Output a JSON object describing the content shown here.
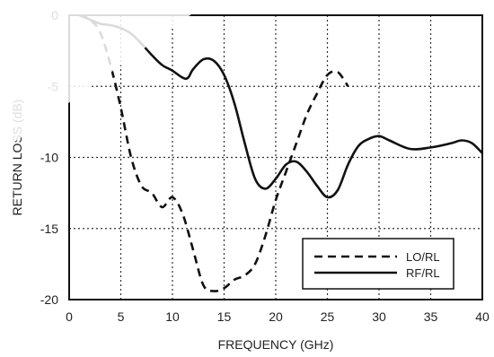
{
  "chart_data": {
    "type": "line",
    "title": "",
    "xlabel": "FREQUENCY (GHz)",
    "ylabel": "RETURN LOSS (dB)",
    "xlim": [
      0,
      40
    ],
    "ylim": [
      -20,
      0
    ],
    "xticks": [
      0,
      5,
      10,
      15,
      20,
      25,
      30,
      35,
      40
    ],
    "yticks": [
      0,
      -5,
      -10,
      -15,
      -20
    ],
    "grid": "dotted",
    "legend_position": "bottom-right",
    "series": [
      {
        "name": "LO/RL",
        "style": "dashed",
        "color": "#111111",
        "points": [
          [
            1,
            0
          ],
          [
            2,
            -0.3
          ],
          [
            3,
            -1.2
          ],
          [
            4,
            -3.5
          ],
          [
            5,
            -6.5
          ],
          [
            6,
            -10
          ],
          [
            7,
            -12
          ],
          [
            8,
            -12.5
          ],
          [
            9,
            -13.5
          ],
          [
            10,
            -12.8
          ],
          [
            11,
            -14
          ],
          [
            12,
            -16.5
          ],
          [
            13,
            -19
          ],
          [
            14,
            -19.4
          ],
          [
            15,
            -19.2
          ],
          [
            16,
            -18.6
          ],
          [
            17,
            -18.3
          ],
          [
            18,
            -17.5
          ],
          [
            19,
            -15.5
          ],
          [
            20,
            -13
          ],
          [
            21,
            -11
          ],
          [
            22,
            -9
          ],
          [
            23,
            -7
          ],
          [
            24,
            -5.5
          ],
          [
            25,
            -4.2
          ],
          [
            26,
            -4
          ],
          [
            27,
            -5
          ]
        ]
      },
      {
        "name": "RF/RL",
        "style": "solid",
        "color": "#111111",
        "points": [
          [
            1,
            0
          ],
          [
            2,
            -0.3
          ],
          [
            3,
            -0.6
          ],
          [
            4,
            -0.7
          ],
          [
            5,
            -0.9
          ],
          [
            6,
            -1.3
          ],
          [
            7,
            -2
          ],
          [
            8,
            -2.8
          ],
          [
            9,
            -3.5
          ],
          [
            10,
            -3.9
          ],
          [
            11,
            -4.4
          ],
          [
            11.5,
            -4.4
          ],
          [
            12,
            -3.8
          ],
          [
            13,
            -3.1
          ],
          [
            14,
            -3.2
          ],
          [
            15,
            -4.2
          ],
          [
            16,
            -6.2
          ],
          [
            17,
            -9
          ],
          [
            18,
            -11.5
          ],
          [
            19,
            -12.2
          ],
          [
            20,
            -11.5
          ],
          [
            21,
            -10.5
          ],
          [
            22,
            -10.3
          ],
          [
            23,
            -11
          ],
          [
            24,
            -12
          ],
          [
            25,
            -12.8
          ],
          [
            26,
            -12.3
          ],
          [
            27,
            -10.5
          ],
          [
            28,
            -9.2
          ],
          [
            29,
            -8.7
          ],
          [
            30,
            -8.5
          ],
          [
            31,
            -8.8
          ],
          [
            33,
            -9.4
          ],
          [
            35,
            -9.3
          ],
          [
            37,
            -9
          ],
          [
            38,
            -8.8
          ],
          [
            39,
            -9
          ],
          [
            40,
            -9.7
          ]
        ]
      }
    ]
  }
}
